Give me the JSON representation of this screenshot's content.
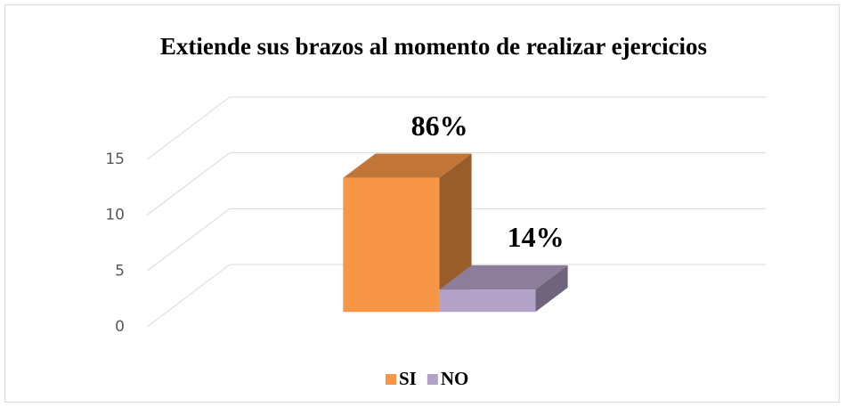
{
  "chart_data": {
    "type": "bar3d",
    "title": "Extiende sus brazos al momento de realizar ejercicios",
    "categories": [
      "SI",
      "NO"
    ],
    "series": [
      {
        "name": "SI",
        "color": "#f79646",
        "values": [
          12,
          null
        ]
      },
      {
        "name": "NO",
        "color": "#b3a2c7",
        "values": [
          null,
          2
        ]
      }
    ],
    "annotations": [
      "86%",
      "14%"
    ],
    "ylim": [
      0,
      15
    ],
    "yticks": [
      0,
      5,
      10,
      15
    ],
    "grid": true,
    "legend": "bottom"
  }
}
